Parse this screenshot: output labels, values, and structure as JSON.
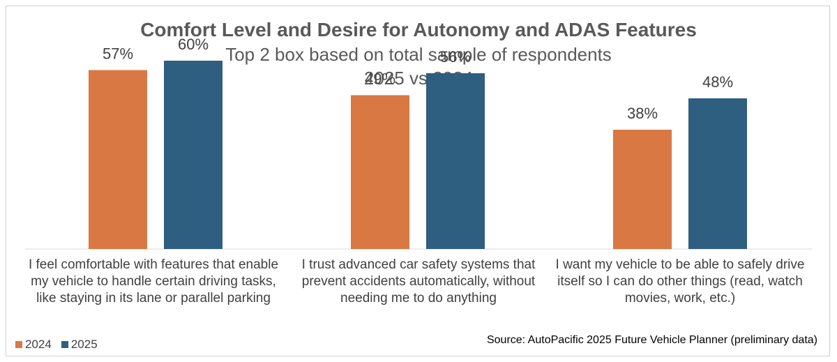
{
  "chart_data": {
    "type": "bar",
    "title": "Comfort Level and Desire for Autonomy and ADAS Features",
    "subtitle": "Top 2 box based on total sample of respondents",
    "subtitle2": "2025 vs 2024",
    "categories": [
      [
        "I feel comfortable with features that enable",
        "my vehicle to handle certain driving tasks,",
        "like staying in its lane or parallel parking"
      ],
      [
        "I trust advanced car safety systems that",
        "prevent accidents automatically, without",
        "needing me to do anything"
      ],
      [
        "I want my vehicle to be able to safely drive",
        "itself so I can do other things (read, watch",
        "movies, work, etc.)"
      ]
    ],
    "series": [
      {
        "name": "2024",
        "color": "#d97842",
        "values": [
          57,
          49,
          38
        ],
        "labels": [
          "57%",
          "49%",
          "38%"
        ]
      },
      {
        "name": "2025",
        "color": "#2e5e80",
        "values": [
          60,
          56,
          48
        ],
        "labels": [
          "60%",
          "56%",
          "48%"
        ]
      }
    ],
    "ylim": [
      0,
      100
    ],
    "grid": false,
    "legend_position": "bottom-left",
    "source": "Source: AutoPacific 2025 Future Vehicle Planner (preliminary data)"
  }
}
